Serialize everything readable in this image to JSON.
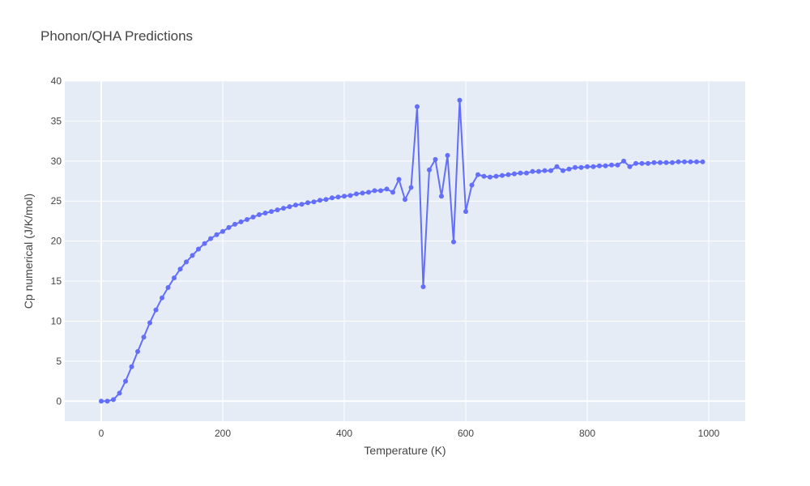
{
  "chart_data": {
    "type": "line",
    "title": "Phonon/QHA Predictions",
    "xlabel": "Temperature (K)",
    "ylabel": "Cp numerical (J/K/mol)",
    "xlim": [
      -60,
      1060
    ],
    "ylim": [
      -2.5,
      40
    ],
    "x_ticks": [
      0,
      200,
      400,
      600,
      800,
      1000
    ],
    "y_ticks": [
      0,
      5,
      10,
      15,
      20,
      25,
      30,
      35,
      40
    ],
    "grid": true,
    "legend": "none",
    "colors": {
      "plot_bg": "#e5ecf6",
      "grid": "#ffffff",
      "series": "#636efa"
    },
    "series": [
      {
        "x": [
          0,
          10,
          20,
          30,
          40,
          50,
          60,
          70,
          80,
          90,
          100,
          110,
          120,
          130,
          140,
          150,
          160,
          170,
          180,
          190,
          200,
          210,
          220,
          230,
          240,
          250,
          260,
          270,
          280,
          290,
          300,
          310,
          320,
          330,
          340,
          350,
          360,
          370,
          380,
          390,
          400,
          410,
          420,
          430,
          440,
          450,
          460,
          470,
          480,
          490,
          500,
          510,
          520,
          530,
          540,
          550,
          560,
          570,
          580,
          590,
          600,
          610,
          620,
          630,
          640,
          650,
          660,
          670,
          680,
          690,
          700,
          710,
          720,
          730,
          740,
          750,
          760,
          770,
          780,
          790,
          800,
          810,
          820,
          830,
          840,
          850,
          860,
          870,
          880,
          890,
          900,
          910,
          920,
          930,
          940,
          950,
          960,
          970,
          980,
          990
        ],
        "values": [
          0,
          0,
          0.2,
          1.0,
          2.5,
          4.3,
          6.2,
          8.0,
          9.8,
          11.4,
          12.9,
          14.2,
          15.4,
          16.5,
          17.4,
          18.2,
          19.0,
          19.7,
          20.3,
          20.8,
          21.2,
          21.7,
          22.1,
          22.4,
          22.7,
          23.0,
          23.3,
          23.5,
          23.7,
          23.9,
          24.1,
          24.3,
          24.5,
          24.6,
          24.8,
          24.9,
          25.1,
          25.2,
          25.4,
          25.5,
          25.6,
          25.7,
          25.9,
          26.0,
          26.1,
          26.3,
          26.3,
          26.5,
          26.1,
          27.7,
          25.2,
          26.7,
          36.8,
          14.3,
          28.9,
          30.2,
          25.6,
          30.7,
          19.9,
          37.6,
          23.7,
          27.0,
          28.3,
          28.1,
          28.0,
          28.1,
          28.2,
          28.3,
          28.4,
          28.5,
          28.5,
          28.7,
          28.7,
          28.8,
          28.8,
          29.3,
          28.8,
          29.0,
          29.2,
          29.2,
          29.3,
          29.3,
          29.4,
          29.4,
          29.5,
          29.5,
          30.0,
          29.3,
          29.7,
          29.7,
          29.7,
          29.8,
          29.8,
          29.8,
          29.8,
          29.9,
          29.9,
          29.9,
          29.9,
          29.9
        ]
      }
    ]
  }
}
